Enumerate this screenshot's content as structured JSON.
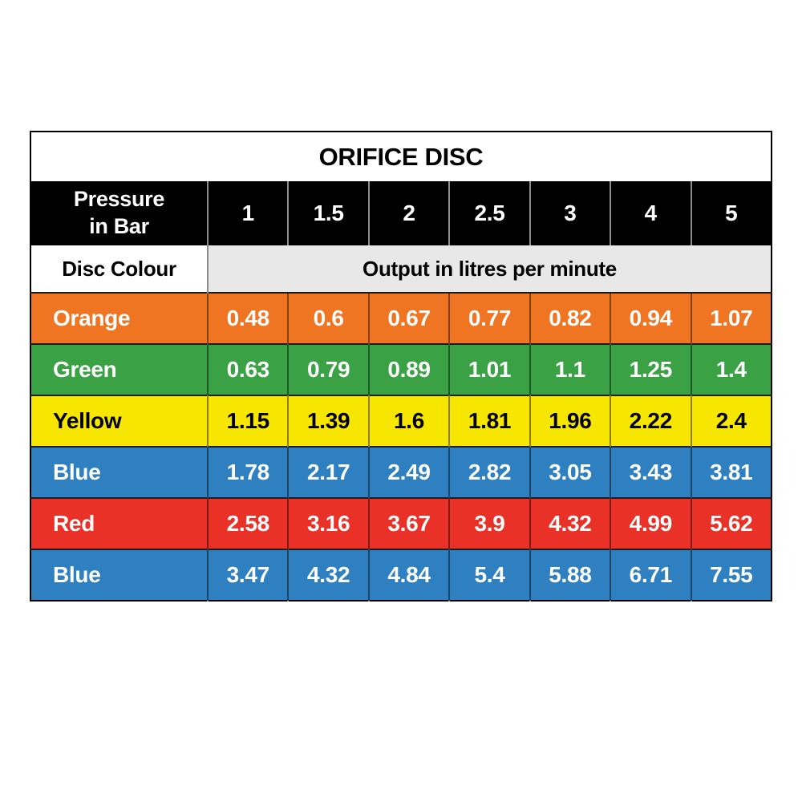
{
  "table": {
    "title": "ORIFICE DISC",
    "header": {
      "pressure_line1": "Pressure",
      "pressure_line2": "in Bar",
      "pressures": [
        "1",
        "1.5",
        "2",
        "2.5",
        "3",
        "4",
        "5"
      ]
    },
    "subheader": {
      "disc_colour_label": "Disc Colour",
      "output_label": "Output in litres per minute"
    },
    "rows": [
      {
        "label": "Orange",
        "values": [
          "0.48",
          "0.6",
          "0.67",
          "0.77",
          "0.82",
          "0.94",
          "1.07"
        ]
      },
      {
        "label": "Green",
        "values": [
          "0.63",
          "0.79",
          "0.89",
          "1.01",
          "1.1",
          "1.25",
          "1.4"
        ]
      },
      {
        "label": "Yellow",
        "values": [
          "1.15",
          "1.39",
          "1.6",
          "1.81",
          "1.96",
          "2.22",
          "2.4"
        ]
      },
      {
        "label": "Blue",
        "values": [
          "1.78",
          "2.17",
          "2.49",
          "2.82",
          "3.05",
          "3.43",
          "3.81"
        ]
      },
      {
        "label": "Red",
        "values": [
          "2.58",
          "3.16",
          "3.67",
          "3.9",
          "4.32",
          "4.99",
          "5.62"
        ]
      },
      {
        "label": "Blue",
        "values": [
          "3.47",
          "4.32",
          "4.84",
          "5.4",
          "5.88",
          "6.71",
          "7.55"
        ]
      }
    ],
    "colors": {
      "orange": "#EF7523",
      "green": "#3AA245",
      "yellow": "#F7E600",
      "blue": "#2F80C0",
      "red": "#E93128",
      "header_bg": "#000000",
      "header_text": "#FFFFFF",
      "output_header_bg": "#E8E8E8",
      "separator_gray": "#8C8C8C",
      "page_bg": "#FFFFFF"
    }
  },
  "chart_data": {
    "type": "table",
    "title": "ORIFICE DISC",
    "columns": [
      "Pressure in Bar",
      "1",
      "1.5",
      "2",
      "2.5",
      "3",
      "4",
      "5"
    ],
    "units_note": "Output in litres per minute",
    "rows": [
      {
        "disc_colour": "Orange",
        "values": [
          0.48,
          0.6,
          0.67,
          0.77,
          0.82,
          0.94,
          1.07
        ]
      },
      {
        "disc_colour": "Green",
        "values": [
          0.63,
          0.79,
          0.89,
          1.01,
          1.1,
          1.25,
          1.4
        ]
      },
      {
        "disc_colour": "Yellow",
        "values": [
          1.15,
          1.39,
          1.6,
          1.81,
          1.96,
          2.22,
          2.4
        ]
      },
      {
        "disc_colour": "Blue",
        "values": [
          1.78,
          2.17,
          2.49,
          2.82,
          3.05,
          3.43,
          3.81
        ]
      },
      {
        "disc_colour": "Red",
        "values": [
          2.58,
          3.16,
          3.67,
          3.9,
          4.32,
          4.99,
          5.62
        ]
      },
      {
        "disc_colour": "Blue",
        "values": [
          3.47,
          4.32,
          4.84,
          5.4,
          5.88,
          6.71,
          7.55
        ]
      }
    ]
  }
}
